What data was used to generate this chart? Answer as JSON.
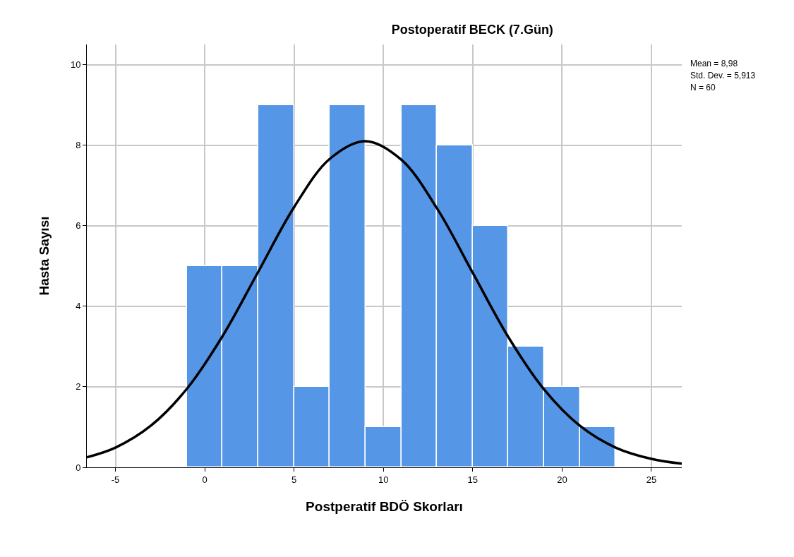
{
  "chart_data": {
    "type": "histogram",
    "title": "Postoperatif BECK (7.Gün)",
    "xlabel": "Postperatif BDÖ Skorları",
    "ylabel": "Hasta Sayısı",
    "bins": [
      -1,
      1,
      3,
      5,
      7,
      9,
      11,
      13,
      15,
      17,
      19,
      21,
      23
    ],
    "values": [
      5,
      5,
      9,
      2,
      9,
      1,
      9,
      8,
      6,
      3,
      2,
      1
    ],
    "color": "#5596e6",
    "series": [
      {
        "type": "line",
        "color": "#000000",
        "x": [
          -6.6,
          -5,
          -3,
          -1,
          1,
          3,
          5,
          7,
          9,
          11,
          13,
          15,
          17,
          19,
          21,
          23,
          25,
          26.7
        ],
        "values": [
          0.25,
          0.49,
          1.04,
          1.95,
          3.26,
          4.86,
          6.46,
          7.66,
          8.1,
          7.64,
          6.43,
          4.83,
          3.23,
          1.93,
          1.03,
          0.49,
          0.21,
          0.09
        ]
      }
    ],
    "xlim": [
      -6.6,
      26.7
    ],
    "xticks": [
      -5,
      0,
      5,
      10,
      15,
      20,
      25
    ],
    "ylim": [
      0,
      10.5
    ],
    "yticks": [
      0,
      2,
      4,
      6,
      8,
      10
    ],
    "grid": true,
    "annotations": [
      "Mean = 8,98",
      "Std. Dev. = 5,913",
      "N = 60"
    ]
  }
}
